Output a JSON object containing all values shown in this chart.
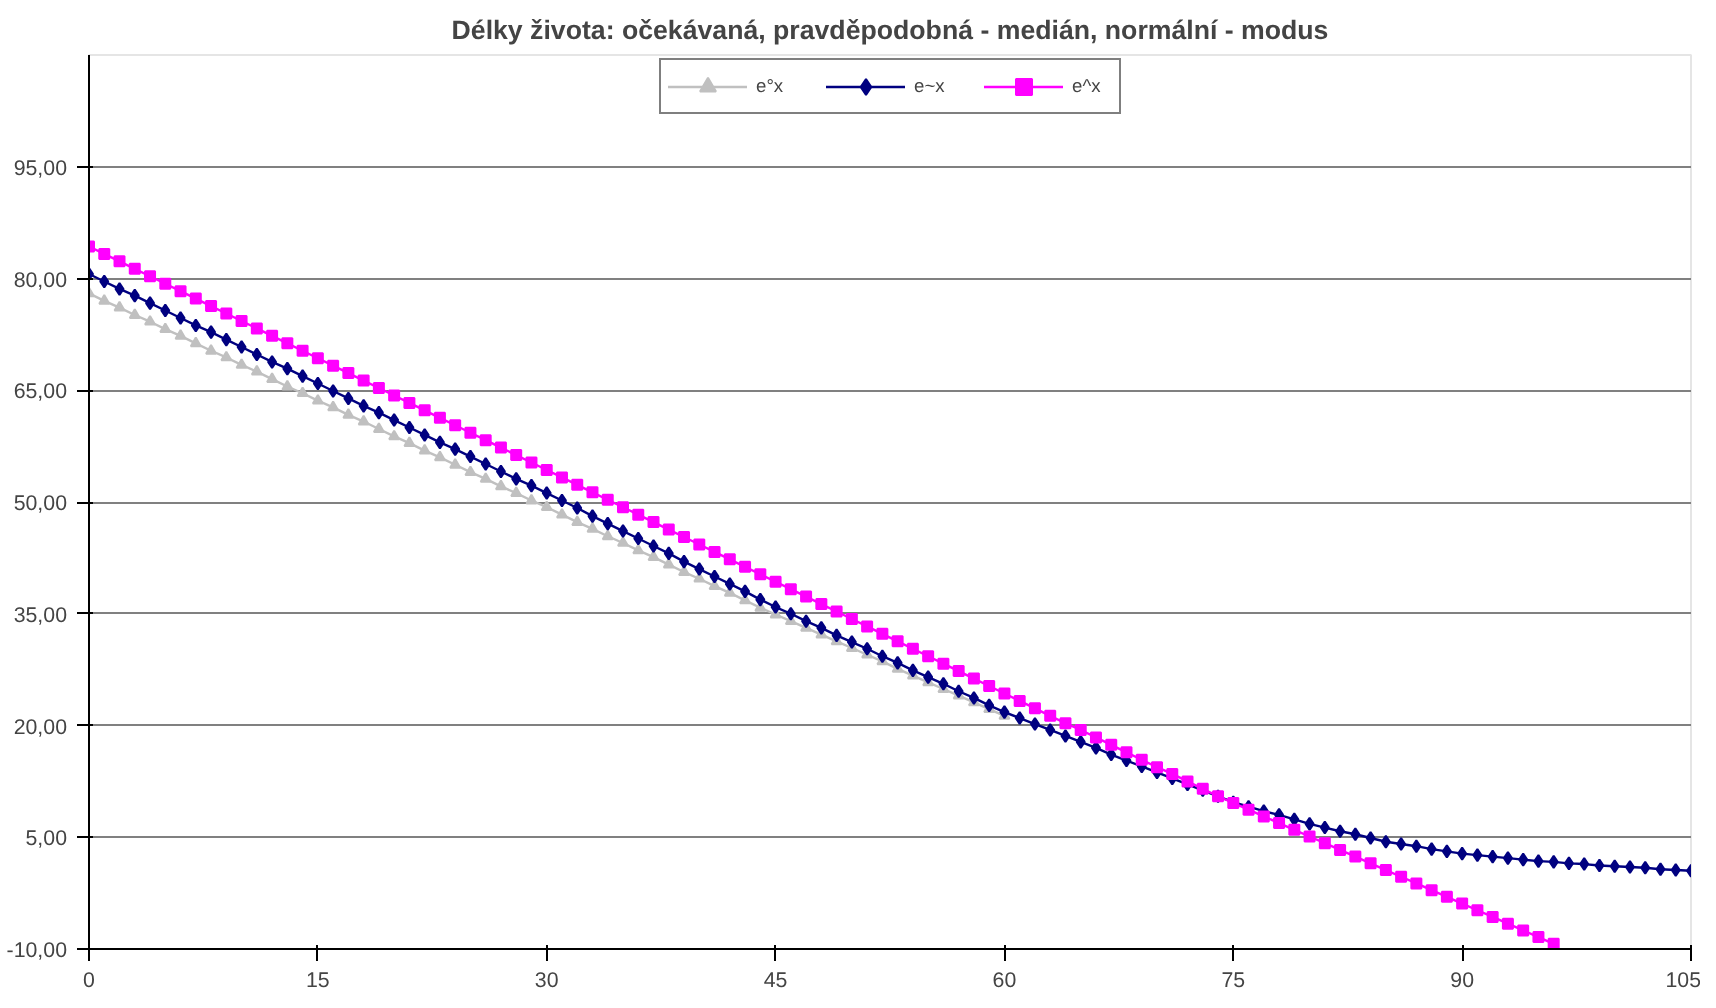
{
  "chart_data": {
    "type": "line",
    "title": "Délky života: očekávaná, pravděpodobná - medián, normální - modus",
    "x": [
      0,
      1,
      2,
      3,
      4,
      5,
      6,
      7,
      8,
      9,
      10,
      11,
      12,
      13,
      14,
      15,
      16,
      17,
      18,
      19,
      20,
      21,
      22,
      23,
      24,
      25,
      26,
      27,
      28,
      29,
      30,
      31,
      32,
      33,
      34,
      35,
      36,
      37,
      38,
      39,
      40,
      41,
      42,
      43,
      44,
      45,
      46,
      47,
      48,
      49,
      50,
      51,
      52,
      53,
      54,
      55,
      56,
      57,
      58,
      59,
      60,
      61,
      62,
      63,
      64,
      65,
      66,
      67,
      68,
      69,
      70,
      71,
      72,
      73,
      74,
      75,
      76,
      77,
      78,
      79,
      80,
      81,
      82,
      83,
      84,
      85,
      86,
      87,
      88,
      89,
      90,
      91,
      92,
      93,
      94,
      95,
      96,
      97,
      98,
      99,
      100,
      101,
      102,
      103,
      104,
      105
    ],
    "series": [
      {
        "name": "e°x",
        "color": "#c0c0c0",
        "marker": "triangle",
        "values": [
          78.0,
          77.0,
          76.1,
          75.1,
          74.2,
          73.2,
          72.3,
          71.3,
          70.3,
          69.4,
          68.4,
          67.5,
          66.5,
          65.5,
          64.6,
          63.6,
          62.7,
          61.7,
          60.8,
          59.8,
          58.8,
          57.9,
          56.9,
          56.0,
          55.0,
          54.0,
          53.1,
          52.1,
          51.2,
          50.2,
          49.3,
          48.3,
          47.3,
          46.4,
          45.4,
          44.5,
          43.5,
          42.6,
          41.6,
          40.6,
          39.7,
          38.7,
          37.8,
          36.8,
          35.8,
          34.9,
          34.0,
          33.1,
          32.2,
          31.3,
          30.4,
          29.5,
          28.6,
          27.6,
          26.7,
          25.8,
          24.9,
          24.0,
          23.1,
          22.2,
          21.3,
          null,
          null,
          null,
          null,
          null,
          null,
          null,
          null,
          null,
          null,
          null,
          null,
          null,
          null,
          null,
          null,
          null,
          null,
          null,
          null,
          null,
          null,
          null,
          null,
          null,
          null,
          null,
          null,
          null,
          null,
          null,
          null,
          null,
          null,
          null,
          null,
          null,
          null,
          null,
          null,
          null,
          null,
          null,
          null,
          null
        ]
      },
      {
        "name": "e~x",
        "color": "#000080",
        "marker": "diamond",
        "values": [
          80.6,
          79.6,
          78.6,
          77.7,
          76.7,
          75.7,
          74.7,
          73.7,
          72.8,
          71.8,
          70.8,
          69.8,
          68.8,
          67.9,
          66.9,
          65.9,
          64.9,
          63.9,
          62.9,
          62.0,
          61.0,
          60.0,
          59.0,
          58.0,
          57.1,
          56.1,
          55.1,
          54.1,
          53.1,
          52.2,
          51.2,
          50.2,
          49.2,
          48.1,
          47.1,
          46.1,
          45.1,
          44.1,
          43.1,
          42.0,
          41.0,
          40.0,
          39.0,
          38.0,
          36.9,
          35.9,
          35.0,
          34.0,
          33.1,
          32.1,
          31.2,
          30.3,
          29.3,
          28.4,
          27.4,
          26.5,
          25.6,
          24.6,
          23.7,
          22.7,
          21.8,
          21.0,
          20.2,
          19.4,
          18.6,
          17.8,
          17.0,
          16.1,
          15.3,
          14.5,
          13.7,
          12.9,
          12.1,
          11.3,
          10.5,
          9.7,
          9.1,
          8.5,
          8.0,
          7.4,
          6.8,
          6.3,
          5.8,
          5.4,
          4.9,
          4.4,
          4.1,
          3.8,
          3.4,
          3.1,
          2.8,
          2.6,
          2.4,
          2.2,
          2.0,
          1.8,
          1.7,
          1.5,
          1.4,
          1.2,
          1.1,
          1.0,
          0.9,
          0.7,
          0.6,
          0.5
        ]
      },
      {
        "name": "e^x",
        "color": "#ff00ff",
        "marker": "square",
        "values": [
          84.3,
          83.3,
          82.3,
          81.3,
          80.3,
          79.3,
          78.3,
          77.3,
          76.3,
          75.3,
          74.3,
          73.3,
          72.3,
          71.3,
          70.3,
          69.3,
          68.3,
          67.3,
          66.3,
          65.3,
          64.3,
          63.3,
          62.3,
          61.3,
          60.3,
          59.3,
          58.3,
          57.3,
          56.3,
          55.3,
          54.3,
          53.3,
          52.3,
          51.3,
          50.3,
          49.3,
          48.3,
          47.3,
          46.3,
          45.3,
          44.3,
          43.3,
          42.3,
          41.3,
          40.3,
          39.3,
          38.3,
          37.3,
          36.3,
          35.3,
          34.3,
          33.3,
          32.3,
          31.3,
          30.3,
          29.3,
          28.3,
          27.3,
          26.3,
          25.3,
          24.3,
          23.3,
          22.3,
          21.3,
          20.3,
          19.4,
          18.4,
          17.4,
          16.4,
          15.4,
          14.4,
          13.5,
          12.5,
          11.5,
          10.5,
          9.6,
          8.7,
          7.8,
          6.9,
          6.0,
          5.1,
          4.2,
          3.3,
          2.4,
          1.5,
          0.6,
          -0.3,
          -1.2,
          -2.1,
          -3.0,
          -3.9,
          -4.8,
          -5.7,
          -6.6,
          -7.5,
          -8.4,
          -9.3,
          null,
          null,
          null,
          null,
          null,
          null,
          null,
          null,
          null
        ]
      }
    ],
    "xlim": [
      0,
      105
    ],
    "xticks": [
      0,
      15,
      30,
      45,
      60,
      75,
      90,
      105
    ],
    "ylim": [
      -10,
      110
    ],
    "yticks": [
      {
        "value": -10,
        "label": "-10,00"
      },
      {
        "value": 5,
        "label": "5,00"
      },
      {
        "value": 20,
        "label": "20,00"
      },
      {
        "value": 35,
        "label": "35,00"
      },
      {
        "value": 50,
        "label": "50,00"
      },
      {
        "value": 65,
        "label": "65,00"
      },
      {
        "value": 80,
        "label": "80,00"
      },
      {
        "value": 95,
        "label": "95,00"
      }
    ],
    "grid": "y",
    "legend": "top",
    "line_style": "solid"
  }
}
